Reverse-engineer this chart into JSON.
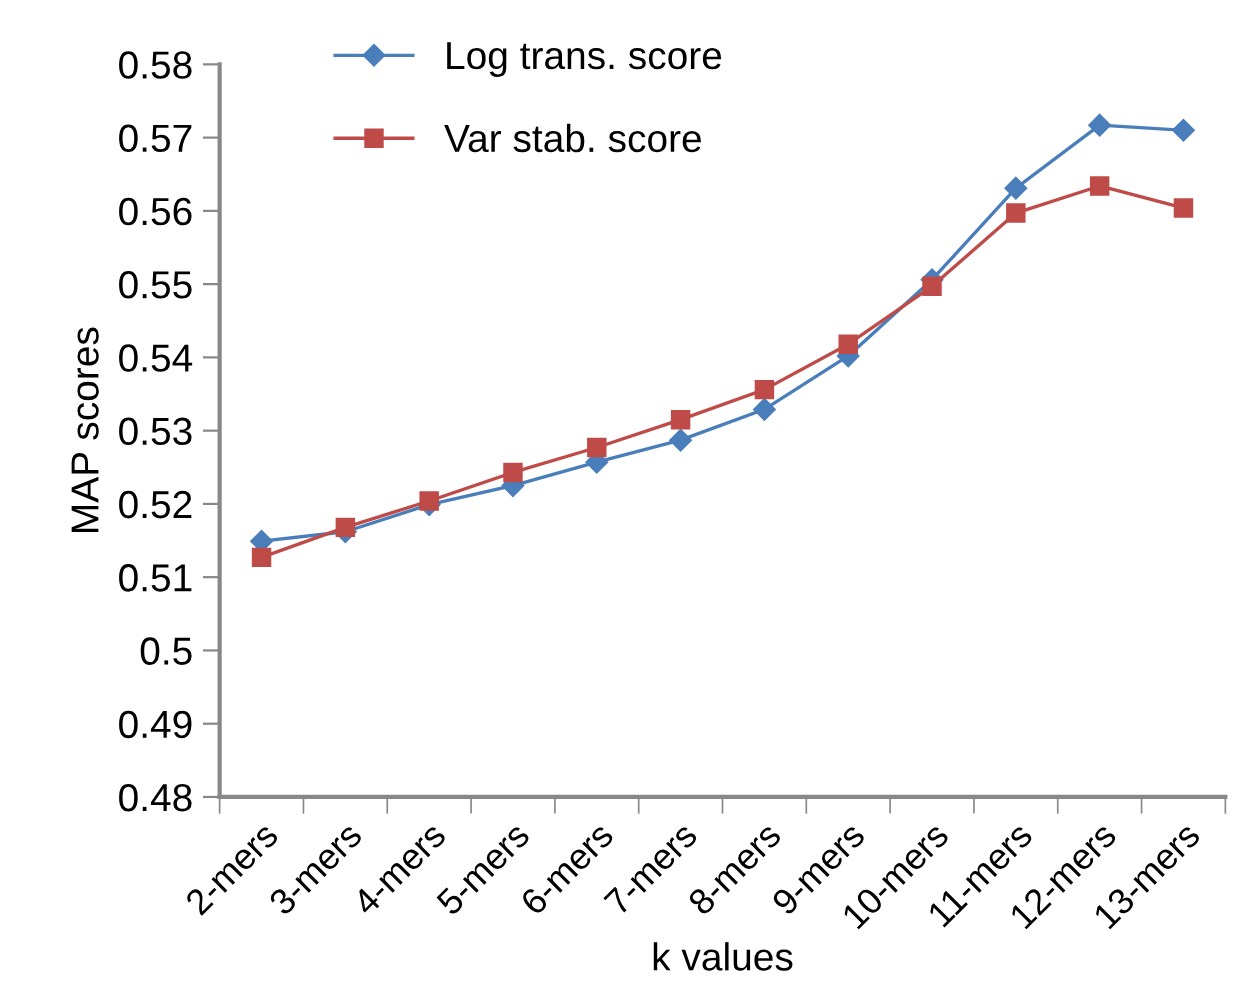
{
  "chart_data": {
    "type": "line",
    "xlabel": "k values",
    "ylabel": "MAP scores",
    "categories": [
      "2-mers",
      "3-mers",
      "4-mers",
      "5-mers",
      "6-mers",
      "7-mers",
      "8-mers",
      "9-mers",
      "10-mers",
      "11-mers",
      "12-mers",
      "13-mers"
    ],
    "series": [
      {
        "name": "Log trans. score",
        "color": "#4a7ebb",
        "marker": "diamond",
        "values": [
          0.5149,
          0.5162,
          0.5199,
          0.5225,
          0.5257,
          0.5287,
          0.5329,
          0.5402,
          0.5506,
          0.5631,
          0.5717,
          0.571
        ]
      },
      {
        "name": "Var stab. score",
        "color": "#be4b48",
        "marker": "square",
        "values": [
          0.5127,
          0.5168,
          0.5204,
          0.5243,
          0.5277,
          0.5315,
          0.5356,
          0.5418,
          0.5497,
          0.5597,
          0.5634,
          0.5604
        ]
      }
    ],
    "ylim": [
      0.48,
      0.58
    ],
    "yticks": [
      0.48,
      0.49,
      0.5,
      0.51,
      0.52,
      0.53,
      0.54,
      0.55,
      0.56,
      0.57,
      0.58
    ],
    "grid": false,
    "legend": "top left",
    "line_style": "solid"
  }
}
